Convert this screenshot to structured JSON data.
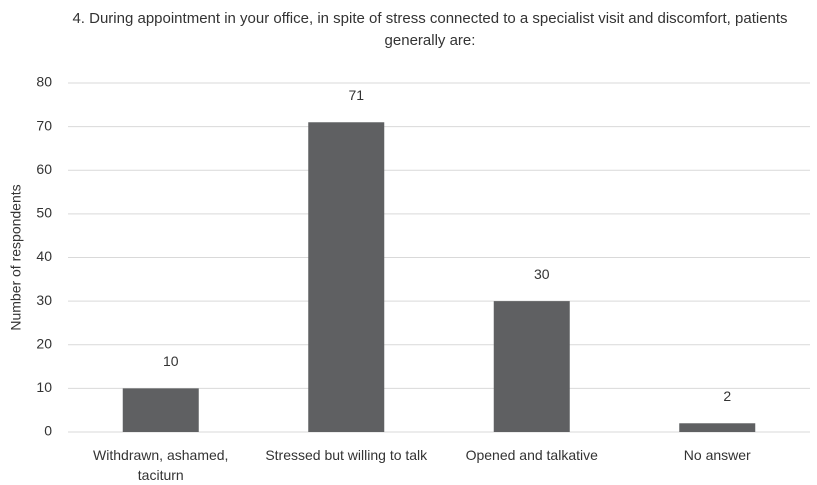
{
  "chart_data": {
    "type": "bar",
    "title": "4. During appointment in your office, in spite of stress connected to a specialist visit and discomfort, patients generally are:",
    "y_label": "Number of respondents",
    "categories": [
      "Withdrawn, ashamed, taciturn",
      "Stressed but willing to talk",
      "Opened and talkative",
      "No answer"
    ],
    "values": [
      10,
      71,
      30,
      2
    ],
    "color": "#5f6062",
    "ylim": [
      0,
      80
    ],
    "yticks": [
      0,
      10,
      20,
      30,
      40,
      50,
      60,
      70,
      80
    ],
    "grid": true
  }
}
